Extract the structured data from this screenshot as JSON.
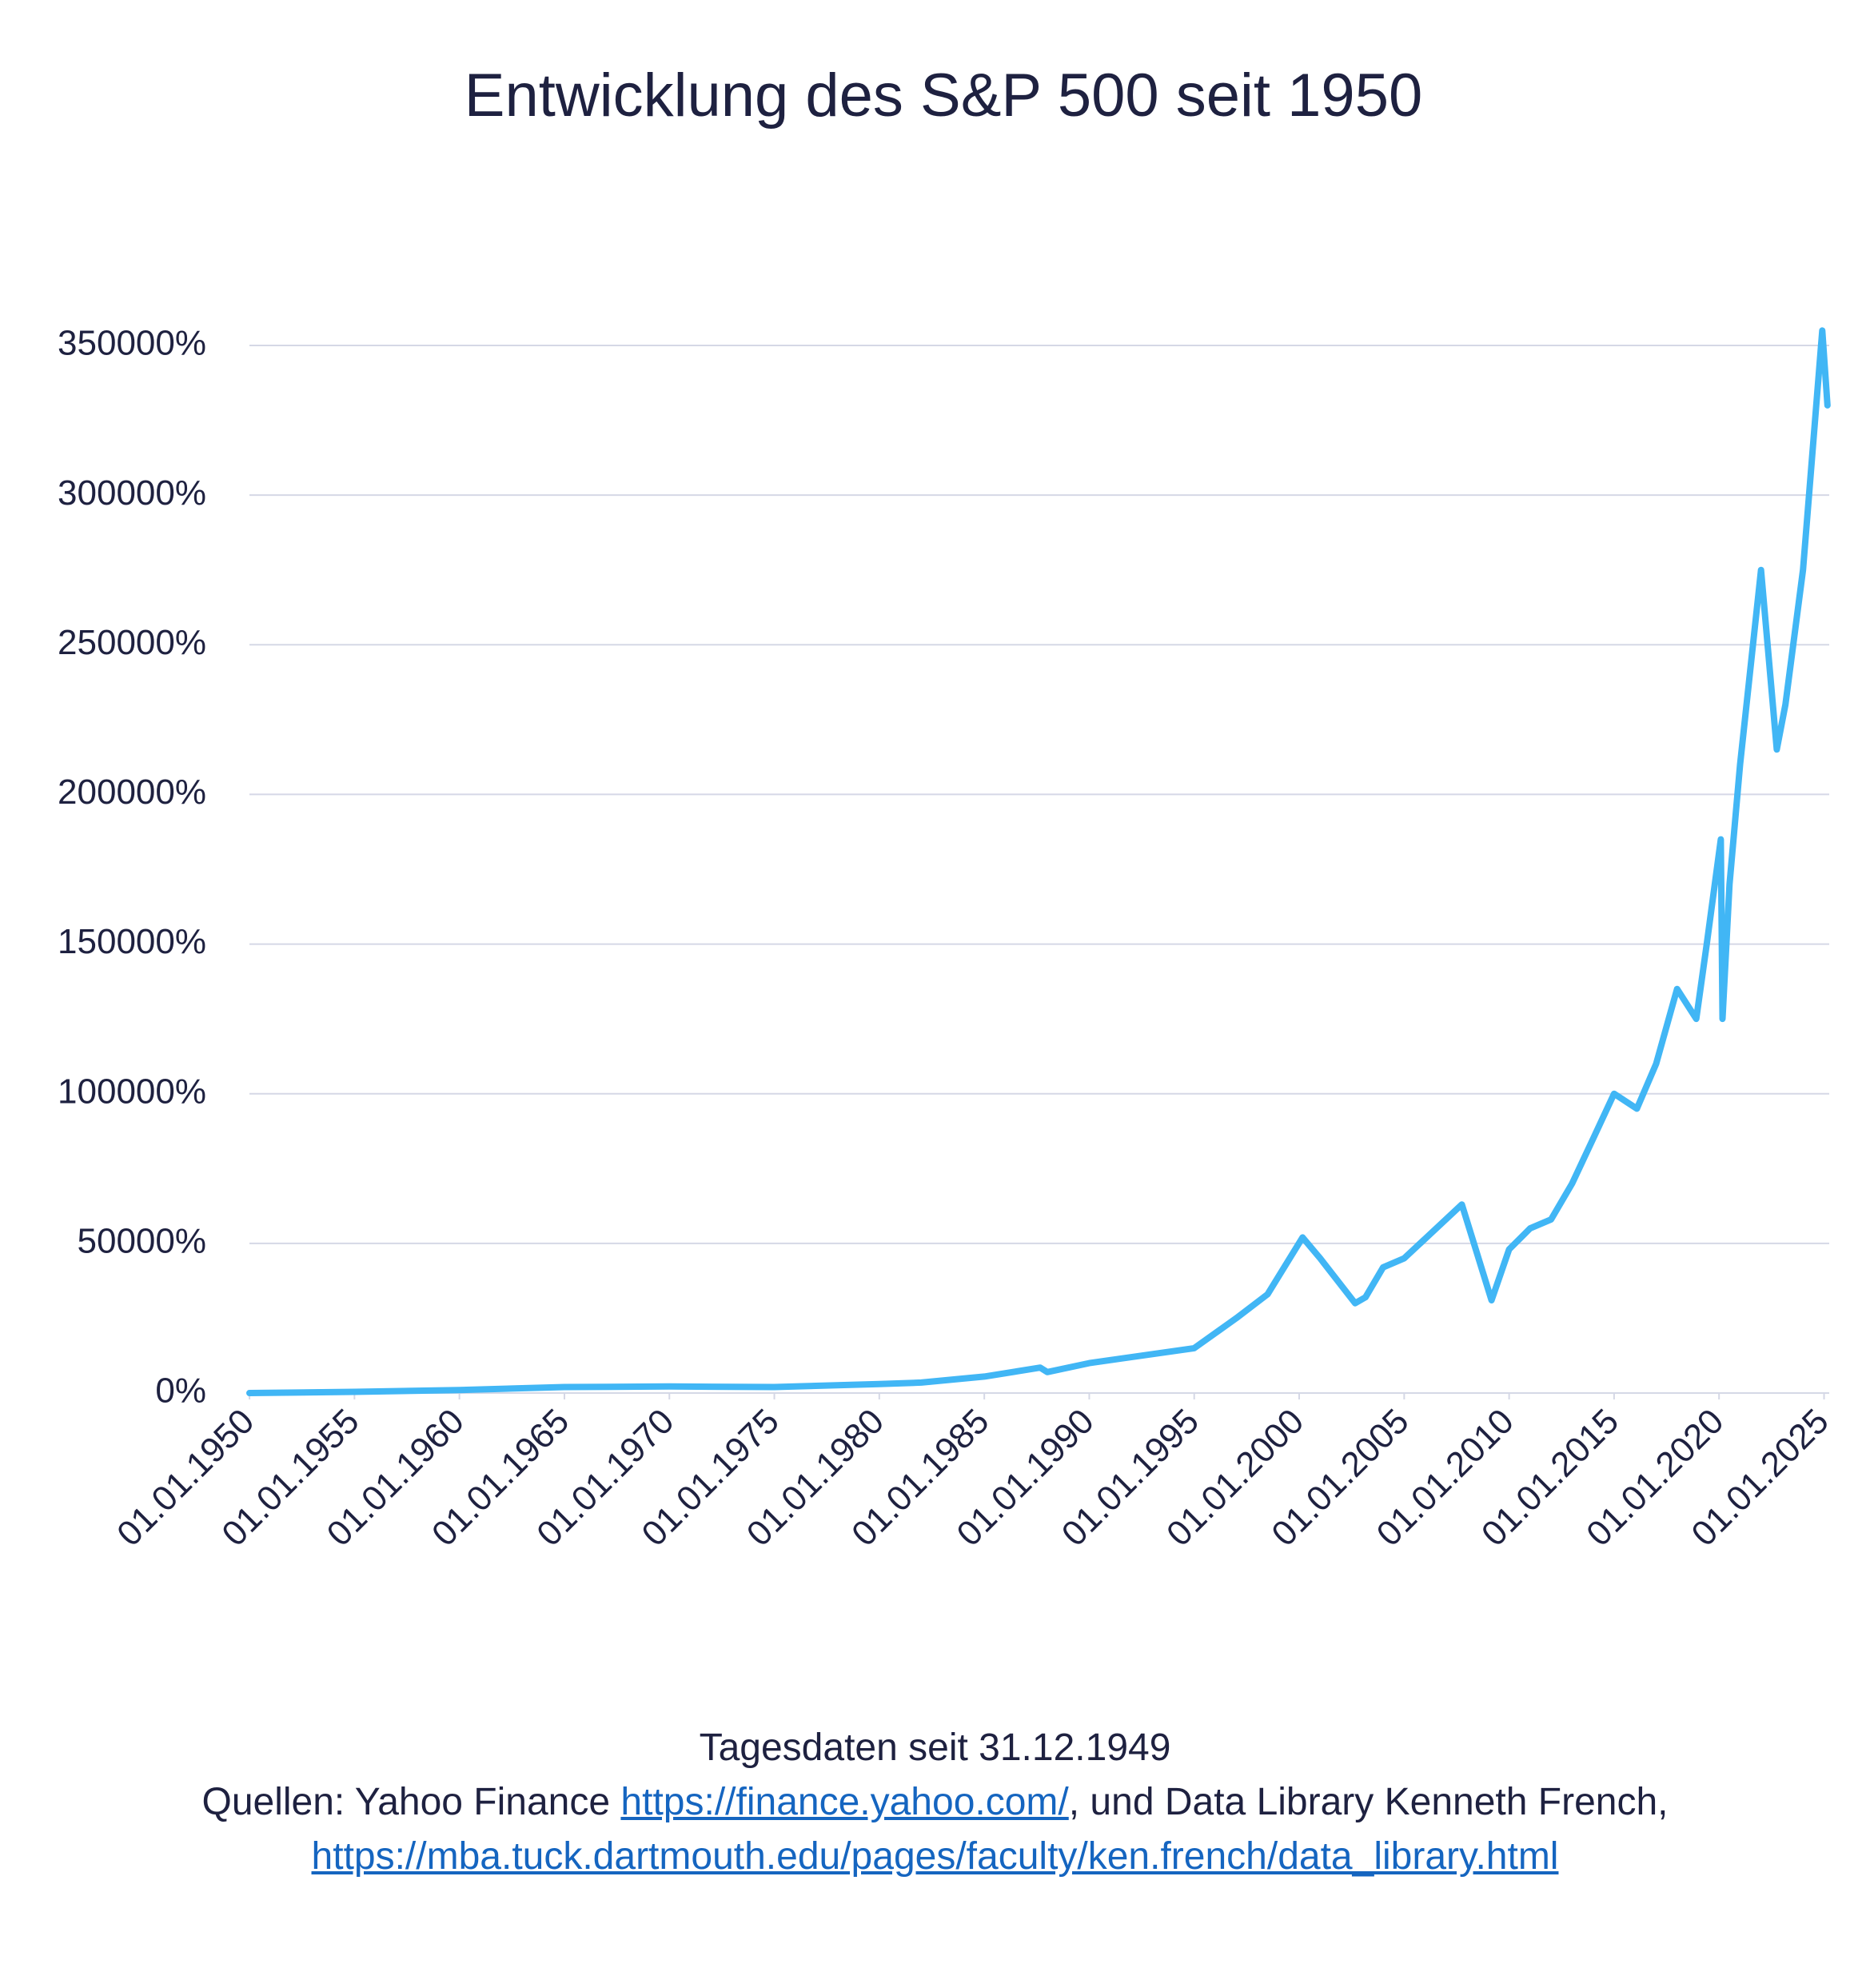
{
  "chart_data": {
    "type": "line",
    "title": "Entwicklung des S&P 500 seit 1950",
    "x": [
      "31.12.1949",
      "01.01.1955",
      "01.01.1960",
      "01.01.1965",
      "01.01.1970",
      "01.01.1975",
      "01.01.1980",
      "01.01.1982",
      "01.01.1985",
      "01.09.1987",
      "01.01.1988",
      "01.01.1990",
      "01.01.1991",
      "01.01.1995",
      "01.01.1997",
      "01.07.1998",
      "01.03.2000",
      "01.01.2001",
      "01.09.2002",
      "01.03.2003",
      "01.01.2004",
      "01.01.2005",
      "01.10.2007",
      "01.03.2009",
      "01.01.2010",
      "01.01.2011",
      "01.01.2012",
      "01.01.2013",
      "01.01.2014",
      "01.01.2015",
      "01.02.2016",
      "01.01.2017",
      "01.01.2018",
      "01.12.2018",
      "01.06.2019",
      "01.02.2020",
      "01.03.2020",
      "01.07.2020",
      "01.01.2021",
      "01.01.2022",
      "01.10.2022",
      "01.03.2023",
      "01.01.2024",
      "01.12.2024",
      "01.03.2025"
    ],
    "values": [
      0,
      400,
      1000,
      2000,
      2200,
      2000,
      3000,
      3500,
      5500,
      8500,
      7000,
      10000,
      11000,
      15000,
      25000,
      33000,
      52000,
      45000,
      30000,
      32000,
      42000,
      45000,
      63000,
      31000,
      48000,
      55000,
      58000,
      70000,
      85000,
      100000,
      95000,
      110000,
      135000,
      125000,
      150000,
      185000,
      125000,
      170000,
      210000,
      275000,
      215000,
      230000,
      275000,
      355000,
      330000
    ],
    "color": "#41b6f5",
    "xlim": [
      "31.12.1949",
      "01.04.2025"
    ],
    "xticks": [
      "01.01.1950",
      "01.01.1955",
      "01.01.1960",
      "01.01.1965",
      "01.01.1970",
      "01.01.1975",
      "01.01.1980",
      "01.01.1985",
      "01.01.1990",
      "01.01.1995",
      "01.01.2000",
      "01.01.2005",
      "01.01.2010",
      "01.01.2015",
      "01.01.2020",
      "01.01.2025"
    ],
    "ylim": [
      0,
      350000
    ],
    "yticks": [
      {
        "value": 0,
        "label": "0%"
      },
      {
        "value": 50000,
        "label": "50000%"
      },
      {
        "value": 100000,
        "label": "100000%"
      },
      {
        "value": 150000,
        "label": "150000%"
      },
      {
        "value": 200000,
        "label": "200000%"
      },
      {
        "value": 250000,
        "label": "250000%"
      },
      {
        "value": 300000,
        "label": "300000%"
      },
      {
        "value": 350000,
        "label": "350000%"
      }
    ],
    "grid": true
  },
  "footer": {
    "line1": "Tagesdaten seit 31.12.1949",
    "text1": "Quellen: Yahoo Finance",
    "link1": "https://finance.yahoo.com/",
    "text2": ", und Data Library Kenneth French,",
    "link2": "https://mba.tuck.dartmouth.edu/pages/faculty/ken.french/data_library.html"
  }
}
